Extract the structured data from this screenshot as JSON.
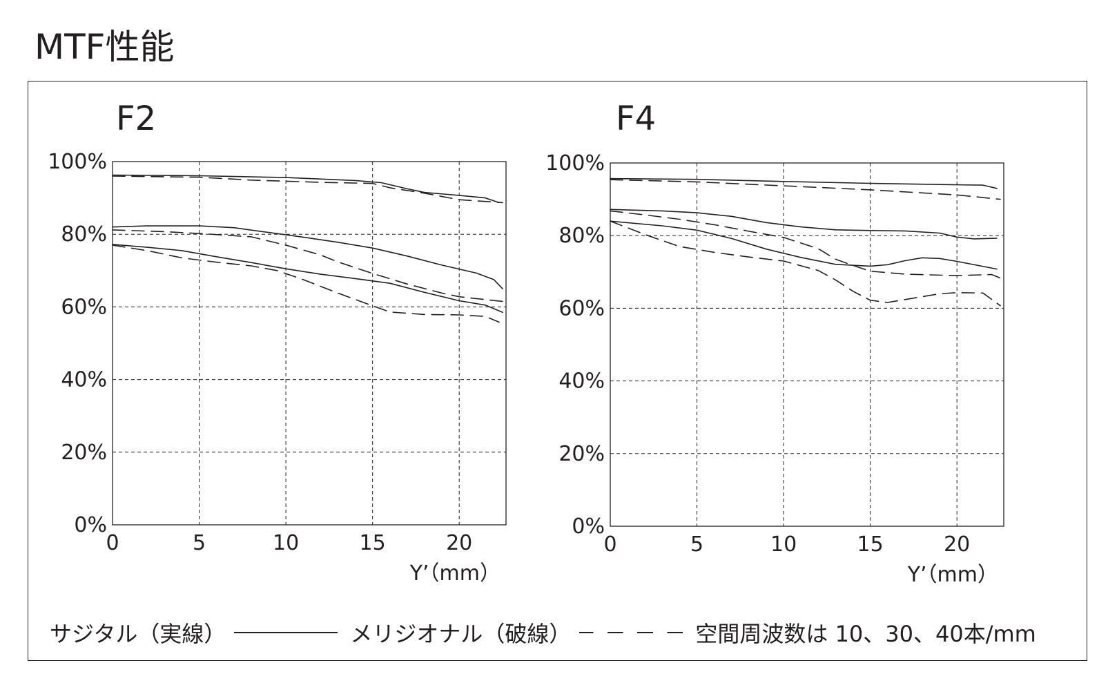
{
  "page": {
    "title": "MTF性能"
  },
  "legend": {
    "sagittal": "サジタル（実線）",
    "meridional": "メリジオナル（破線）",
    "frequencies": "空間周波数は 10、30、40本/mm"
  },
  "colors": {
    "line": "#231f20",
    "grid": "#231f20",
    "background": "#ffffff"
  },
  "chart_data": [
    {
      "type": "line",
      "title": "F2",
      "xlabel": "Y’（mm）",
      "ylabel": "",
      "xlim": [
        0,
        22.7
      ],
      "ylim": [
        0,
        100
      ],
      "xticks": [
        "0",
        "5",
        "10",
        "15",
        "20"
      ],
      "xtick_values": [
        0,
        5,
        10,
        15,
        20
      ],
      "yticks": [
        "0%",
        "20%",
        "40%",
        "60%",
        "80%",
        "100%"
      ],
      "ytick_values": [
        0,
        20,
        40,
        60,
        80,
        100
      ],
      "grid": true,
      "series": [
        {
          "style": "solid",
          "x": [
            0,
            5,
            10,
            14,
            15.5,
            17,
            18,
            20,
            21.5,
            22.3
          ],
          "values": [
            96.3,
            96.1,
            95.6,
            94.8,
            94.2,
            92.5,
            91.5,
            90.7,
            90.0,
            88.7
          ]
        },
        {
          "style": "dashed",
          "x": [
            0,
            5,
            8,
            10,
            12,
            15,
            16,
            18,
            20,
            22.5
          ],
          "values": [
            96.0,
            95.7,
            94.9,
            94.6,
            94.3,
            94.0,
            92.8,
            91.3,
            89.5,
            88.7
          ]
        },
        {
          "style": "solid",
          "x": [
            0,
            2,
            5,
            7,
            9,
            11,
            13,
            15,
            17,
            19,
            21,
            22,
            22.5
          ],
          "values": [
            82,
            82.3,
            82.3,
            81.8,
            80.5,
            79.2,
            77.8,
            76.2,
            74,
            71.5,
            69.3,
            67.5,
            65
          ]
        },
        {
          "style": "dashed",
          "x": [
            0,
            3,
            5,
            8,
            10,
            12,
            13,
            15,
            17,
            19,
            20,
            22.5
          ],
          "values": [
            81.2,
            80.7,
            80.2,
            79.3,
            77,
            74.3,
            72.4,
            69.2,
            66.3,
            63.8,
            62.8,
            61.5
          ]
        },
        {
          "style": "solid",
          "x": [
            0,
            2,
            4,
            6,
            8,
            10,
            12,
            14,
            16,
            18,
            20,
            21.5,
            22.5
          ],
          "values": [
            77.2,
            76.4,
            75.5,
            73.8,
            72.2,
            70.5,
            69,
            67.8,
            66.5,
            64,
            61.7,
            60.5,
            58.5
          ]
        },
        {
          "style": "dashed",
          "x": [
            0,
            2,
            4,
            6,
            8,
            9.5,
            11,
            13,
            15,
            16,
            18,
            20,
            21.5,
            22.3
          ],
          "values": [
            77,
            75.5,
            73.5,
            72.3,
            71.3,
            70,
            67.5,
            63.8,
            60.3,
            58.6,
            57.9,
            57.8,
            57.4,
            55.8
          ]
        }
      ]
    },
    {
      "type": "line",
      "title": "F4",
      "xlabel": "Y’（mm）",
      "ylabel": "",
      "xlim": [
        0,
        22.7
      ],
      "ylim": [
        0,
        100
      ],
      "xticks": [
        "0",
        "5",
        "10",
        "15",
        "20"
      ],
      "xtick_values": [
        0,
        5,
        10,
        15,
        20
      ],
      "yticks": [
        "0%",
        "20%",
        "40%",
        "60%",
        "80%",
        "100%"
      ],
      "ytick_values": [
        0,
        20,
        40,
        60,
        80,
        100
      ],
      "grid": true,
      "series": [
        {
          "style": "solid",
          "x": [
            0,
            5,
            10,
            15,
            20,
            21.5,
            22.3
          ],
          "values": [
            95.7,
            95.5,
            94.9,
            94.4,
            94.0,
            93.9,
            93.0
          ]
        },
        {
          "style": "dashed",
          "x": [
            0,
            5,
            10,
            15,
            20,
            22.5
          ],
          "values": [
            95.4,
            94.8,
            93.7,
            92.6,
            91.2,
            90.0
          ]
        },
        {
          "style": "solid",
          "x": [
            0,
            3,
            5,
            7,
            9,
            11,
            13,
            15,
            17,
            19,
            20,
            21,
            22.3
          ],
          "values": [
            87.2,
            86.8,
            86.3,
            85.3,
            83.6,
            82.4,
            81.6,
            81.4,
            81.3,
            80.7,
            79.6,
            79.1,
            79.3
          ]
        },
        {
          "style": "dashed",
          "x": [
            0,
            2,
            4,
            6,
            8,
            10,
            12,
            13,
            14,
            15,
            17,
            20,
            22,
            22.5
          ],
          "values": [
            86.8,
            85.7,
            84.5,
            83,
            81.2,
            79.5,
            76.4,
            73.5,
            71.8,
            70.2,
            69.4,
            69,
            69.3,
            68.3
          ]
        },
        {
          "style": "solid",
          "x": [
            0,
            3,
            5,
            7,
            9,
            11,
            13,
            15,
            16,
            17,
            18,
            19,
            20,
            22.3
          ],
          "values": [
            84,
            82.7,
            81.5,
            79.2,
            76.3,
            74,
            72.1,
            71.6,
            72,
            73.1,
            73.9,
            73.7,
            72.9,
            70.8
          ]
        },
        {
          "style": "dashed",
          "x": [
            0,
            2,
            4,
            6,
            8,
            10,
            12,
            13,
            14,
            15,
            16,
            17,
            19,
            20,
            21.5,
            22.5
          ],
          "values": [
            84,
            80.3,
            77,
            75.4,
            74.1,
            73,
            70.4,
            67.8,
            64.7,
            62.2,
            61.6,
            62.4,
            64,
            64.3,
            64.2,
            60.7
          ]
        }
      ]
    }
  ]
}
